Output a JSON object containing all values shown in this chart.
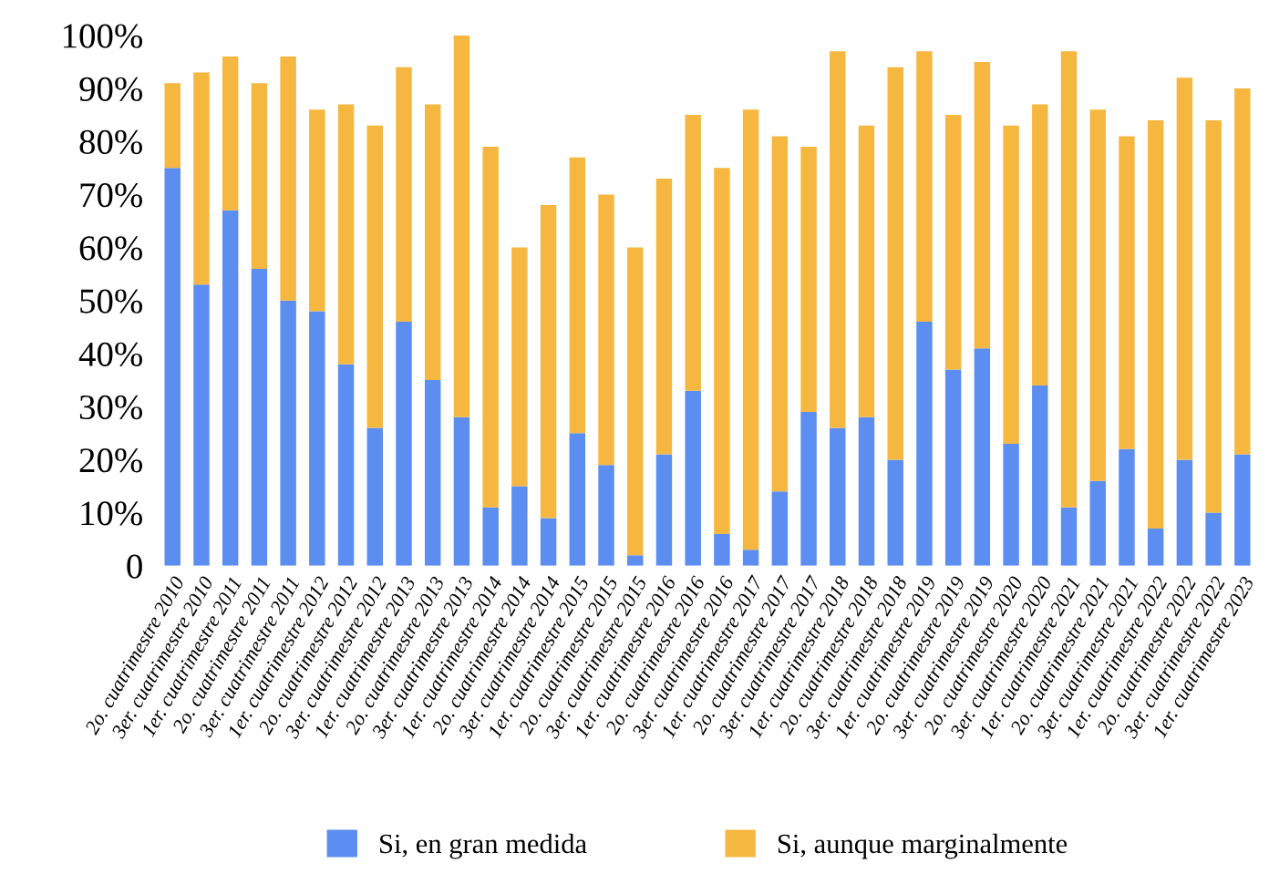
{
  "chart_data": {
    "type": "bar",
    "stacked": true,
    "categories": [
      "2o. cuatrimestre 2010",
      "3er. cuatrimestre 2010",
      "1er. cuatrimestre 2011",
      "2o. cuatrimestre 2011",
      "3er. cuatrimestre 2011",
      "1er. cuatrimestre 2012",
      "2o. cuatrimestre 2012",
      "3er. cuatrimestre 2012",
      "1er. cuatrimestre 2013",
      "2o. cuatrimestre 2013",
      "3er. cuatrimestre 2013",
      "1er. cuatrimestre 2014",
      "2o. cuatrimestre 2014",
      "3er. cuatrimestre 2014",
      "1er. cuatrimestre 2015",
      "2o. cuatrimestre 2015",
      "3er. cuatrimestre 2015",
      "1er. cuatrimestre 2016",
      "2o. cuatrimestre 2016",
      "3er. cuatrimestre 2016",
      "1er. cuatrimestre 2017",
      "2o. cuatrimestre 2017",
      "3er. cuatrimestre 2017",
      "1er. cuatrimestre 2018",
      "2o. cuatrimestre 2018",
      "3er. cuatrimestre 2018",
      "1er. cuatrimestre 2019",
      "2o. cuatrimestre 2019",
      "3er. cuatrimestre 2019",
      "2o. cuatrimestre 2020",
      "3er. cuatrimestre 2020",
      "1er. cuatrimestre 2021",
      "2o. cuatrimestre 2021",
      "3er. cuatrimestre 2021",
      "1er. cuatrimestre 2022",
      "2o. cuatrimestre 2022",
      "3er. cuatrimestre 2022",
      "1er. cuatrimestre 2023"
    ],
    "series": [
      {
        "name": "Si, en gran medida",
        "color": "#5b8ef0",
        "values": [
          75,
          53,
          67,
          56,
          50,
          48,
          38,
          26,
          46,
          35,
          28,
          11,
          15,
          9,
          25,
          19,
          2,
          21,
          33,
          6,
          3,
          14,
          29,
          26,
          28,
          20,
          46,
          37,
          41,
          23,
          34,
          11,
          16,
          22,
          7,
          20,
          10,
          21
        ]
      },
      {
        "name": "Si, aunque marginalmente",
        "color": "#f6b740",
        "values": [
          16,
          40,
          29,
          35,
          46,
          38,
          49,
          57,
          48,
          52,
          72,
          68,
          45,
          59,
          52,
          51,
          58,
          52,
          52,
          69,
          83,
          67,
          50,
          71,
          55,
          74,
          51,
          48,
          54,
          60,
          53,
          86,
          70,
          59,
          77,
          72,
          74,
          69
        ]
      }
    ],
    "ylim": [
      0,
      100
    ],
    "yticks": [
      {
        "value": 0,
        "label": "0"
      },
      {
        "value": 10,
        "label": "10%"
      },
      {
        "value": 20,
        "label": "20%"
      },
      {
        "value": 30,
        "label": "30%"
      },
      {
        "value": 40,
        "label": "40%"
      },
      {
        "value": 50,
        "label": "50%"
      },
      {
        "value": 60,
        "label": "60%"
      },
      {
        "value": 70,
        "label": "70%"
      },
      {
        "value": 80,
        "label": "80%"
      },
      {
        "value": 90,
        "label": "90%"
      },
      {
        "value": 100,
        "label": "100%"
      }
    ],
    "grid": false,
    "legend": "bottom"
  }
}
